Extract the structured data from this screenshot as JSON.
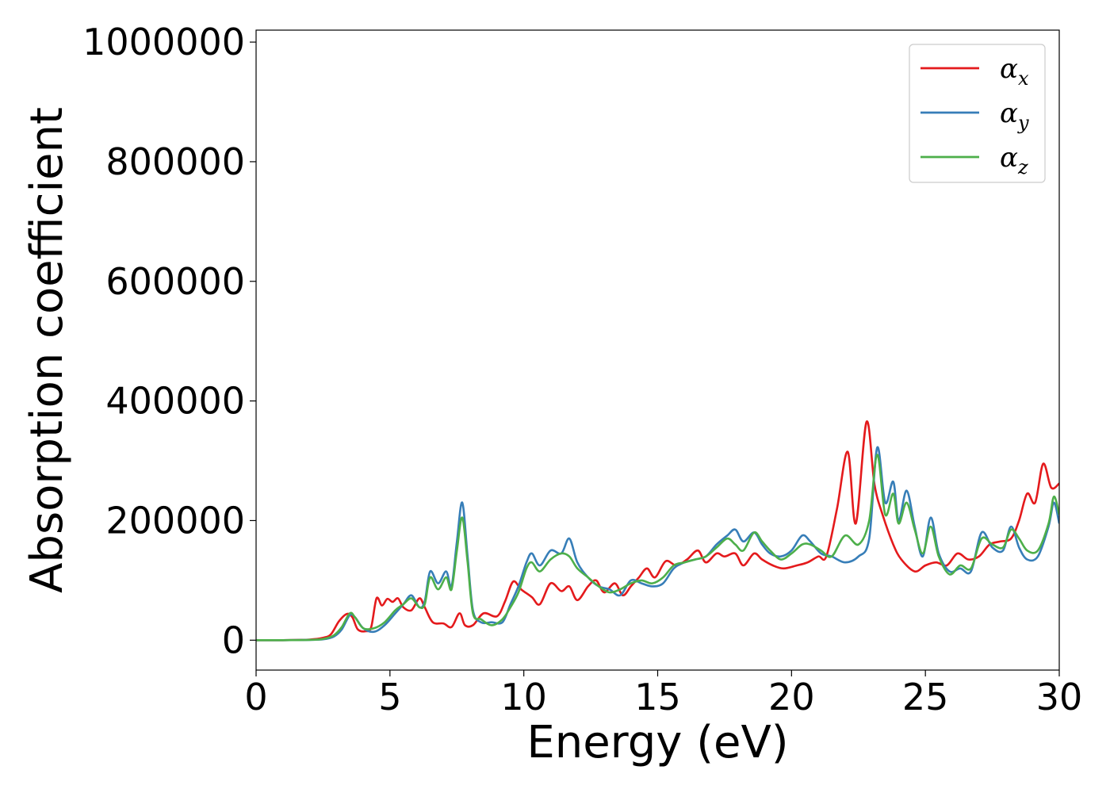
{
  "chart_data": {
    "type": "line",
    "xlabel": "Energy (eV)",
    "ylabel": "Absorption coefficient",
    "xlim": [
      0,
      30
    ],
    "ylim": [
      -50000,
      1020000
    ],
    "x_ticks": [
      0,
      5,
      10,
      15,
      20,
      25,
      30
    ],
    "y_ticks": [
      0,
      200000,
      400000,
      600000,
      800000,
      1000000
    ],
    "x_tick_labels": [
      "0",
      "5",
      "10",
      "15",
      "20",
      "25",
      "30"
    ],
    "y_tick_labels": [
      "0",
      "200000",
      "400000",
      "600000",
      "800000",
      "1000000"
    ],
    "grid": false,
    "legend_position": "top-right",
    "series": [
      {
        "name": "α",
        "subscript": "x",
        "color": "#e41a1c",
        "points": [
          [
            0,
            0
          ],
          [
            1,
            0
          ],
          [
            2,
            1000
          ],
          [
            2.5,
            4000
          ],
          [
            2.8,
            10000
          ],
          [
            3.1,
            32000
          ],
          [
            3.4,
            44000
          ],
          [
            3.6,
            38000
          ],
          [
            3.8,
            18000
          ],
          [
            4.1,
            15000
          ],
          [
            4.3,
            22000
          ],
          [
            4.5,
            70000
          ],
          [
            4.7,
            58000
          ],
          [
            4.9,
            69000
          ],
          [
            5.1,
            64000
          ],
          [
            5.3,
            70000
          ],
          [
            5.5,
            55000
          ],
          [
            5.8,
            50000
          ],
          [
            6.1,
            70000
          ],
          [
            6.3,
            55000
          ],
          [
            6.6,
            30000
          ],
          [
            7.0,
            28000
          ],
          [
            7.3,
            22000
          ],
          [
            7.6,
            45000
          ],
          [
            7.8,
            25000
          ],
          [
            8.1,
            25000
          ],
          [
            8.5,
            45000
          ],
          [
            9.0,
            40000
          ],
          [
            9.3,
            65000
          ],
          [
            9.6,
            98000
          ],
          [
            9.9,
            85000
          ],
          [
            10.3,
            72000
          ],
          [
            10.6,
            60000
          ],
          [
            11.0,
            95000
          ],
          [
            11.4,
            82000
          ],
          [
            11.7,
            90000
          ],
          [
            12.0,
            67000
          ],
          [
            12.4,
            90000
          ],
          [
            12.7,
            100000
          ],
          [
            13.0,
            80000
          ],
          [
            13.4,
            95000
          ],
          [
            13.7,
            75000
          ],
          [
            14.0,
            90000
          ],
          [
            14.3,
            105000
          ],
          [
            14.6,
            120000
          ],
          [
            14.9,
            105000
          ],
          [
            15.3,
            132000
          ],
          [
            15.7,
            125000
          ],
          [
            16.1,
            135000
          ],
          [
            16.5,
            150000
          ],
          [
            16.8,
            130000
          ],
          [
            17.2,
            145000
          ],
          [
            17.5,
            140000
          ],
          [
            17.9,
            145000
          ],
          [
            18.2,
            125000
          ],
          [
            18.6,
            145000
          ],
          [
            18.9,
            135000
          ],
          [
            19.3,
            125000
          ],
          [
            19.7,
            120000
          ],
          [
            20.2,
            125000
          ],
          [
            20.6,
            130000
          ],
          [
            21.0,
            140000
          ],
          [
            21.3,
            140000
          ],
          [
            21.7,
            220000
          ],
          [
            22.1,
            315000
          ],
          [
            22.4,
            195000
          ],
          [
            22.8,
            365000
          ],
          [
            23.1,
            260000
          ],
          [
            23.4,
            210000
          ],
          [
            23.8,
            160000
          ],
          [
            24.1,
            135000
          ],
          [
            24.6,
            115000
          ],
          [
            25.0,
            125000
          ],
          [
            25.4,
            130000
          ],
          [
            25.8,
            125000
          ],
          [
            26.2,
            145000
          ],
          [
            26.6,
            135000
          ],
          [
            27.0,
            140000
          ],
          [
            27.4,
            160000
          ],
          [
            27.8,
            165000
          ],
          [
            28.2,
            170000
          ],
          [
            28.5,
            200000
          ],
          [
            28.8,
            245000
          ],
          [
            29.1,
            230000
          ],
          [
            29.4,
            295000
          ],
          [
            29.7,
            255000
          ],
          [
            30.0,
            262000
          ]
        ]
      },
      {
        "name": "α",
        "subscript": "y",
        "color": "#377eb8",
        "points": [
          [
            0,
            0
          ],
          [
            1,
            0
          ],
          [
            2,
            500
          ],
          [
            2.5,
            1500
          ],
          [
            2.9,
            6000
          ],
          [
            3.2,
            18000
          ],
          [
            3.5,
            42000
          ],
          [
            3.7,
            38000
          ],
          [
            4.0,
            20000
          ],
          [
            4.4,
            14000
          ],
          [
            4.8,
            25000
          ],
          [
            5.2,
            45000
          ],
          [
            5.5,
            60000
          ],
          [
            5.8,
            75000
          ],
          [
            6.1,
            55000
          ],
          [
            6.3,
            65000
          ],
          [
            6.5,
            115000
          ],
          [
            6.8,
            95000
          ],
          [
            7.1,
            115000
          ],
          [
            7.3,
            90000
          ],
          [
            7.5,
            165000
          ],
          [
            7.7,
            230000
          ],
          [
            7.9,
            140000
          ],
          [
            8.1,
            50000
          ],
          [
            8.4,
            30000
          ],
          [
            8.8,
            30000
          ],
          [
            9.2,
            30000
          ],
          [
            9.5,
            60000
          ],
          [
            9.8,
            90000
          ],
          [
            10.1,
            130000
          ],
          [
            10.3,
            145000
          ],
          [
            10.6,
            125000
          ],
          [
            11.0,
            150000
          ],
          [
            11.4,
            145000
          ],
          [
            11.7,
            170000
          ],
          [
            12.0,
            130000
          ],
          [
            12.4,
            105000
          ],
          [
            12.8,
            90000
          ],
          [
            13.2,
            85000
          ],
          [
            13.6,
            75000
          ],
          [
            14.0,
            100000
          ],
          [
            14.4,
            95000
          ],
          [
            14.8,
            90000
          ],
          [
            15.2,
            95000
          ],
          [
            15.6,
            120000
          ],
          [
            16.0,
            130000
          ],
          [
            16.4,
            135000
          ],
          [
            16.8,
            140000
          ],
          [
            17.2,
            160000
          ],
          [
            17.6,
            175000
          ],
          [
            17.9,
            185000
          ],
          [
            18.2,
            165000
          ],
          [
            18.6,
            180000
          ],
          [
            18.9,
            160000
          ],
          [
            19.2,
            145000
          ],
          [
            19.6,
            140000
          ],
          [
            20.0,
            150000
          ],
          [
            20.4,
            175000
          ],
          [
            20.7,
            165000
          ],
          [
            21.1,
            145000
          ],
          [
            21.5,
            140000
          ],
          [
            22.0,
            130000
          ],
          [
            22.5,
            140000
          ],
          [
            22.9,
            170000
          ],
          [
            23.2,
            322000
          ],
          [
            23.5,
            230000
          ],
          [
            23.8,
            265000
          ],
          [
            24.0,
            200000
          ],
          [
            24.3,
            250000
          ],
          [
            24.6,
            190000
          ],
          [
            24.9,
            140000
          ],
          [
            25.2,
            205000
          ],
          [
            25.5,
            145000
          ],
          [
            25.9,
            115000
          ],
          [
            26.3,
            120000
          ],
          [
            26.7,
            115000
          ],
          [
            27.1,
            180000
          ],
          [
            27.5,
            155000
          ],
          [
            27.9,
            150000
          ],
          [
            28.2,
            190000
          ],
          [
            28.5,
            155000
          ],
          [
            28.8,
            135000
          ],
          [
            29.2,
            140000
          ],
          [
            29.6,
            190000
          ],
          [
            29.8,
            230000
          ],
          [
            30.0,
            195000
          ]
        ]
      },
      {
        "name": "α",
        "subscript": "z",
        "color": "#4daf4a",
        "points": [
          [
            0,
            0
          ],
          [
            1,
            0
          ],
          [
            2,
            500
          ],
          [
            2.5,
            2000
          ],
          [
            2.9,
            8000
          ],
          [
            3.2,
            22000
          ],
          [
            3.5,
            45000
          ],
          [
            3.7,
            38000
          ],
          [
            4.0,
            20000
          ],
          [
            4.4,
            20000
          ],
          [
            4.8,
            30000
          ],
          [
            5.2,
            50000
          ],
          [
            5.5,
            60000
          ],
          [
            5.8,
            70000
          ],
          [
            6.1,
            55000
          ],
          [
            6.3,
            60000
          ],
          [
            6.5,
            105000
          ],
          [
            6.8,
            85000
          ],
          [
            7.1,
            105000
          ],
          [
            7.3,
            85000
          ],
          [
            7.5,
            150000
          ],
          [
            7.7,
            205000
          ],
          [
            7.9,
            130000
          ],
          [
            8.1,
            45000
          ],
          [
            8.4,
            35000
          ],
          [
            8.8,
            25000
          ],
          [
            9.2,
            35000
          ],
          [
            9.5,
            55000
          ],
          [
            9.8,
            80000
          ],
          [
            10.1,
            120000
          ],
          [
            10.3,
            130000
          ],
          [
            10.6,
            115000
          ],
          [
            11.0,
            135000
          ],
          [
            11.4,
            145000
          ],
          [
            11.7,
            140000
          ],
          [
            12.0,
            120000
          ],
          [
            12.4,
            105000
          ],
          [
            12.8,
            90000
          ],
          [
            13.2,
            80000
          ],
          [
            13.6,
            85000
          ],
          [
            14.0,
            95000
          ],
          [
            14.4,
            100000
          ],
          [
            14.8,
            95000
          ],
          [
            15.2,
            105000
          ],
          [
            15.6,
            125000
          ],
          [
            16.0,
            130000
          ],
          [
            16.4,
            135000
          ],
          [
            16.8,
            140000
          ],
          [
            17.2,
            155000
          ],
          [
            17.6,
            170000
          ],
          [
            17.9,
            160000
          ],
          [
            18.2,
            150000
          ],
          [
            18.6,
            180000
          ],
          [
            18.9,
            165000
          ],
          [
            19.2,
            150000
          ],
          [
            19.6,
            135000
          ],
          [
            20.0,
            145000
          ],
          [
            20.4,
            160000
          ],
          [
            20.7,
            160000
          ],
          [
            21.1,
            150000
          ],
          [
            21.5,
            140000
          ],
          [
            22.0,
            175000
          ],
          [
            22.5,
            160000
          ],
          [
            22.9,
            200000
          ],
          [
            23.2,
            310000
          ],
          [
            23.5,
            210000
          ],
          [
            23.8,
            245000
          ],
          [
            24.0,
            195000
          ],
          [
            24.3,
            230000
          ],
          [
            24.6,
            185000
          ],
          [
            24.9,
            145000
          ],
          [
            25.2,
            190000
          ],
          [
            25.5,
            140000
          ],
          [
            25.9,
            110000
          ],
          [
            26.3,
            125000
          ],
          [
            26.7,
            120000
          ],
          [
            27.1,
            170000
          ],
          [
            27.5,
            160000
          ],
          [
            27.9,
            155000
          ],
          [
            28.2,
            185000
          ],
          [
            28.5,
            170000
          ],
          [
            28.8,
            150000
          ],
          [
            29.2,
            150000
          ],
          [
            29.6,
            195000
          ],
          [
            29.8,
            240000
          ],
          [
            30.0,
            210000
          ]
        ]
      }
    ]
  }
}
